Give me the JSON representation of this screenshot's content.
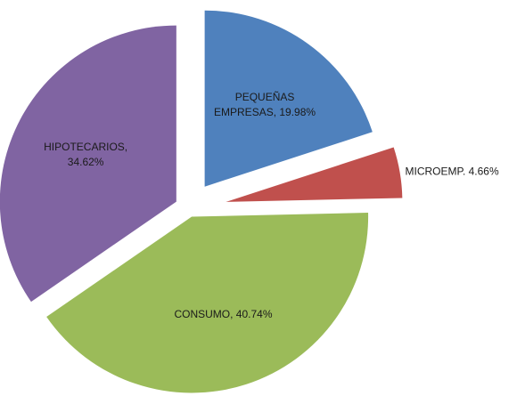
{
  "chart_data": {
    "type": "pie",
    "values": [
      19.98,
      4.66,
      40.74,
      34.62
    ],
    "value_labels": [
      [
        "PEQUEÑAS",
        "EMPRESAS, 19.98%"
      ],
      [
        "MICROEMP. 4.66%"
      ],
      [
        "CONSUMO, 40.74%"
      ],
      [
        "HIPOTECARIOS,",
        "34.62%"
      ]
    ],
    "colors": [
      "#4f81bd",
      "#c0504d",
      "#9bbb59",
      "#8064a2"
    ]
  }
}
